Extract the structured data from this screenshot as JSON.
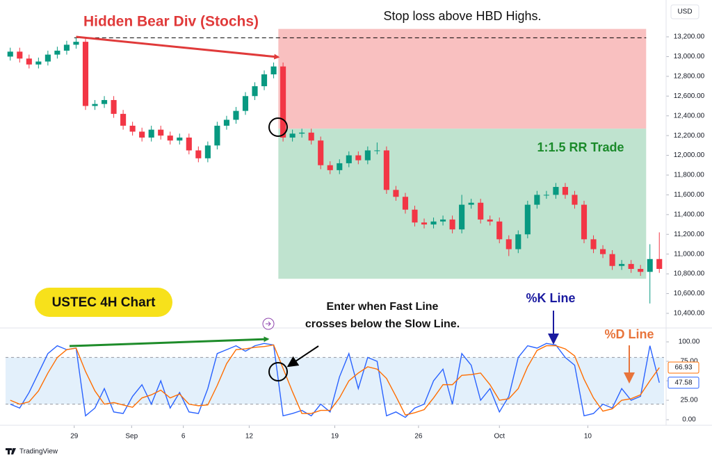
{
  "chart_data": [
    {
      "type": "candlestick",
      "currency": "USD",
      "x": [
        0,
        1,
        2,
        3,
        4,
        5,
        6,
        7,
        8,
        9,
        10,
        11,
        12,
        13,
        14,
        15,
        16,
        17,
        18,
        19,
        20,
        21,
        22,
        23,
        24,
        25,
        26,
        27,
        28,
        29,
        30,
        31,
        32,
        33,
        34,
        35,
        36,
        37,
        38,
        39,
        40,
        41,
        42,
        43,
        44,
        45,
        46,
        47,
        48,
        49,
        50,
        51,
        52,
        53,
        54,
        55,
        56,
        57,
        58,
        59,
        60,
        61,
        62,
        63,
        64,
        65,
        66,
        67,
        68,
        69
      ],
      "open": [
        13000,
        13050,
        12980,
        12920,
        12950,
        13020,
        13060,
        13120,
        13150,
        12500,
        12520,
        12560,
        12420,
        12300,
        12240,
        12180,
        12260,
        12200,
        12150,
        12180,
        12050,
        11970,
        12100,
        12300,
        12360,
        12450,
        12600,
        12700,
        12820,
        12900,
        12180,
        12220,
        12230,
        12150,
        11900,
        11850,
        11920,
        12000,
        11950,
        12050,
        12050,
        11650,
        11580,
        11450,
        11320,
        11300,
        11330,
        11350,
        11250,
        11500,
        11520,
        11350,
        11330,
        11150,
        11050,
        11200,
        11500,
        11600,
        11600,
        11680,
        11600,
        11500,
        11150,
        11050,
        11000,
        10880,
        10900,
        10850,
        10820,
        10950
      ],
      "high": [
        13090,
        13090,
        13020,
        12990,
        13060,
        13100,
        13160,
        13190,
        13190,
        12560,
        12600,
        12600,
        12460,
        12340,
        12280,
        12300,
        12300,
        12240,
        12220,
        12220,
        12090,
        12140,
        12340,
        12400,
        12490,
        12640,
        12740,
        12860,
        12940,
        12940,
        12260,
        12270,
        12270,
        12190,
        11940,
        11960,
        12040,
        12040,
        12090,
        12130,
        12090,
        11690,
        11620,
        11490,
        11360,
        11370,
        11390,
        11390,
        11600,
        11560,
        11560,
        11390,
        11370,
        11190,
        11240,
        11540,
        11640,
        11640,
        11720,
        11720,
        11640,
        11540,
        11190,
        11090,
        11040,
        10940,
        10940,
        10890,
        11100,
        11220
      ],
      "low": [
        12960,
        12940,
        12880,
        12880,
        12910,
        12980,
        13020,
        13080,
        12460,
        12460,
        12480,
        12380,
        12260,
        12200,
        12140,
        12140,
        12160,
        12110,
        12110,
        12010,
        11930,
        11930,
        12060,
        12260,
        12320,
        12410,
        12560,
        12660,
        12780,
        12140,
        12140,
        12180,
        12110,
        11860,
        11810,
        11810,
        11880,
        11910,
        11910,
        12010,
        11610,
        11540,
        11410,
        11280,
        11260,
        11260,
        11290,
        11210,
        11210,
        11460,
        11310,
        11290,
        11110,
        10980,
        11010,
        11160,
        11460,
        11560,
        11560,
        11560,
        11460,
        11110,
        11010,
        10960,
        10840,
        10840,
        10810,
        10780,
        10500,
        10810
      ],
      "close": [
        13050,
        12980,
        12920,
        12950,
        13020,
        13060,
        13120,
        13150,
        12500,
        12520,
        12560,
        12420,
        12300,
        12240,
        12180,
        12260,
        12200,
        12150,
        12180,
        12050,
        11970,
        12100,
        12300,
        12360,
        12450,
        12600,
        12700,
        12820,
        12900,
        12180,
        12220,
        12230,
        12150,
        11900,
        11850,
        11920,
        12000,
        11950,
        12050,
        12050,
        11650,
        11580,
        11450,
        11320,
        11300,
        11330,
        11350,
        11250,
        11500,
        11520,
        11350,
        11330,
        11150,
        11050,
        11200,
        11500,
        11600,
        11600,
        11680,
        11600,
        11500,
        11150,
        11050,
        11000,
        10880,
        10900,
        10850,
        10820,
        10950,
        10850
      ],
      "up_color": "#089981",
      "down_color": "#f23645",
      "xlim": [
        -0.5,
        69.5
      ],
      "ylim": [
        10280,
        13573
      ],
      "yticks": [
        {
          "value": 13200,
          "label": "13,200.00"
        },
        {
          "value": 13000,
          "label": "13,000.00"
        },
        {
          "value": 12800,
          "label": "12,800.00"
        },
        {
          "value": 12600,
          "label": "12,600.00"
        },
        {
          "value": 12400,
          "label": "12,400.00"
        },
        {
          "value": 12200,
          "label": "12,200.00"
        },
        {
          "value": 12000,
          "label": "12,000.00"
        },
        {
          "value": 11800,
          "label": "11,800.00"
        },
        {
          "value": 11600,
          "label": "11,600.00"
        },
        {
          "value": 11400,
          "label": "11,400.00"
        },
        {
          "value": 11200,
          "label": "11,200.00"
        },
        {
          "value": 11000,
          "label": "11,000.00"
        },
        {
          "value": 10800,
          "label": "10,800.00"
        },
        {
          "value": 10600,
          "label": "10,600.00"
        },
        {
          "value": 10400,
          "label": "10,400.00"
        }
      ],
      "grid": false,
      "position": {
        "x": [
          28.5,
          67.6
        ],
        "stop": 13280,
        "entry": 12270,
        "target": 10750,
        "stop_color": "#f9c0c0",
        "target_color": "#bfe3cf"
      },
      "stop_line": {
        "x": [
          6.8,
          67.6
        ],
        "y": 13190
      },
      "divergence": {
        "x": [
          7,
          28.5
        ],
        "y": [
          13200,
          12995
        ],
        "color": "#e03a3a"
      },
      "annotations": {
        "divergence": "Hidden Bear Div (Stochs)",
        "stop_note": "Stop loss above HBD Highs.",
        "trade": "1:1.5 RR Trade",
        "chart_label": "USTEC 4H Chart"
      }
    },
    {
      "type": "line",
      "x": [
        0,
        1,
        2,
        3,
        4,
        5,
        6,
        7,
        8,
        9,
        10,
        11,
        12,
        13,
        14,
        15,
        16,
        17,
        18,
        19,
        20,
        21,
        22,
        23,
        24,
        25,
        26,
        27,
        28,
        29,
        30,
        31,
        32,
        33,
        34,
        35,
        36,
        37,
        38,
        39,
        40,
        41,
        42,
        43,
        44,
        45,
        46,
        47,
        48,
        49,
        50,
        51,
        52,
        53,
        54,
        55,
        56,
        57,
        58,
        59,
        60,
        61,
        62,
        63,
        64,
        65,
        66,
        67,
        68,
        69
      ],
      "series": [
        {
          "name": "%K Line",
          "color": "#2962ff",
          "values": [
            20,
            15,
            35,
            60,
            85,
            95,
            90,
            92,
            5,
            15,
            40,
            10,
            8,
            30,
            45,
            20,
            50,
            15,
            35,
            10,
            8,
            40,
            85,
            90,
            95,
            88,
            95,
            98,
            96,
            5,
            8,
            12,
            5,
            20,
            10,
            55,
            85,
            40,
            80,
            75,
            5,
            10,
            3,
            15,
            20,
            50,
            65,
            20,
            85,
            70,
            25,
            40,
            10,
            30,
            80,
            95,
            92,
            98,
            96,
            80,
            70,
            5,
            8,
            20,
            15,
            40,
            25,
            30,
            95,
            47.58
          ]
        },
        {
          "name": "%D Line",
          "color": "#ff6d00",
          "values": [
            25,
            20,
            23,
            37,
            60,
            80,
            90,
            92,
            62,
            37,
            20,
            22,
            19,
            16,
            28,
            32,
            38,
            28,
            33,
            20,
            18,
            19,
            44,
            72,
            90,
            91,
            93,
            94,
            96,
            66,
            36,
            8,
            8,
            12,
            12,
            28,
            50,
            60,
            68,
            65,
            53,
            30,
            6,
            9,
            13,
            28,
            45,
            45,
            57,
            58,
            60,
            45,
            25,
            27,
            40,
            68,
            89,
            95,
            95,
            91,
            82,
            52,
            28,
            11,
            14,
            25,
            27,
            32,
            50,
            66.93
          ]
        }
      ],
      "xlim": [
        -0.5,
        69.5
      ],
      "ylim": [
        -7.1,
        112.5
      ],
      "yticks": [
        {
          "value": 100,
          "label": "100.00"
        },
        {
          "value": 75,
          "label": "75.00"
        },
        {
          "value": 50,
          "label": "50.00"
        },
        {
          "value": 25,
          "label": "25.00"
        },
        {
          "value": 0,
          "label": "0.00"
        }
      ],
      "xticks": [
        {
          "value": 6.8,
          "label": "29"
        },
        {
          "value": 12.9,
          "label": "Sep"
        },
        {
          "value": 18.4,
          "label": "6"
        },
        {
          "value": 25.4,
          "label": "12"
        },
        {
          "value": 34.5,
          "label": "19"
        },
        {
          "value": 43.4,
          "label": "26"
        },
        {
          "value": 52,
          "label": "Oct"
        },
        {
          "value": 61.4,
          "label": "10"
        }
      ],
      "band": [
        20,
        80
      ],
      "band_color": "#e3f0fb",
      "divergence": {
        "x": [
          6.3,
          27.4
        ],
        "y": [
          94.6,
          103.6
        ],
        "color": "#1e8c2a"
      },
      "annotations": {
        "entry": [
          "Enter when Fast Line",
          "crosses below the Slow Line."
        ]
      }
    }
  ],
  "footer": {
    "brand": "TradingView"
  }
}
